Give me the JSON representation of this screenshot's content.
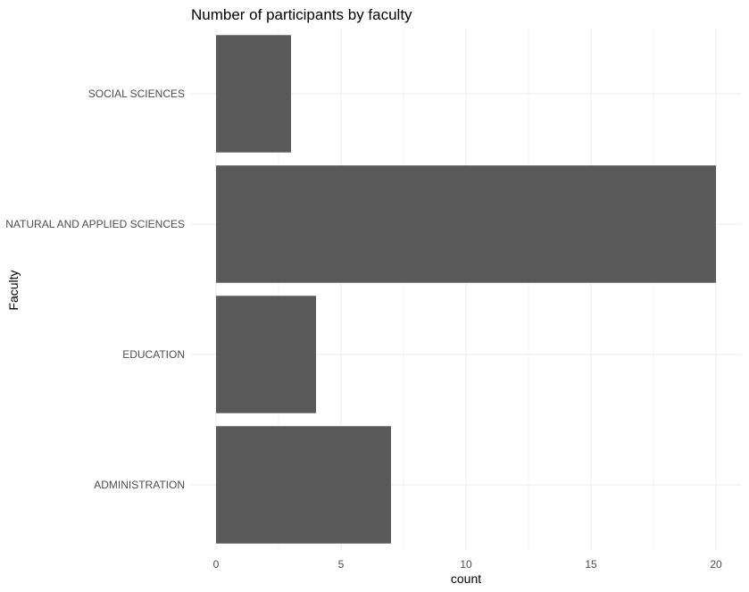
{
  "chart_data": {
    "type": "bar",
    "orientation": "horizontal",
    "title": "Number of participants by faculty",
    "xlabel": "count",
    "ylabel": "Faculty",
    "categories": [
      "SOCIAL SCIENCES",
      "NATURAL AND APPLIED SCIENCES",
      "EDUCATION",
      "ADMINISTRATION"
    ],
    "values": [
      3,
      20,
      4,
      7
    ],
    "xlim": [
      0,
      21
    ],
    "xticks": [
      0,
      5,
      10,
      15,
      20
    ],
    "grid": true,
    "legend": "none",
    "bar_color": "#595959",
    "grid_color": "#ebebeb",
    "background": "#ffffff"
  }
}
